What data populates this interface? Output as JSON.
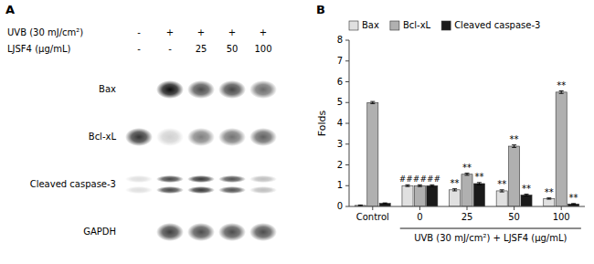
{
  "chart_data": [
    {
      "type": "blot",
      "title": "A",
      "header_rows": [
        {
          "label": "UVB (30 mJ/cm²)",
          "values": [
            "-",
            "+",
            "+",
            "+",
            "+"
          ]
        },
        {
          "label": "LJSF4 (μg/mL)",
          "values": [
            "-",
            "-",
            "25",
            "50",
            "100"
          ]
        }
      ],
      "series": [
        {
          "name": "Bax",
          "values": [
            0.0,
            0.95,
            0.7,
            0.72,
            0.58
          ]
        },
        {
          "name": "Bcl-xL",
          "values": [
            0.8,
            0.18,
            0.5,
            0.55,
            0.62
          ]
        },
        {
          "name": "Cleaved caspase-3",
          "values": [
            0.12,
            0.72,
            0.78,
            0.68,
            0.25
          ],
          "marker": "double"
        },
        {
          "name": "GAPDH",
          "values": [
            0.0,
            0.75,
            0.7,
            0.7,
            0.7
          ]
        }
      ]
    },
    {
      "type": "bar",
      "title": "B",
      "ylabel": "Folds",
      "categories": [
        "Control",
        "0",
        "25",
        "50",
        "100"
      ],
      "series": [
        {
          "name": "Bax",
          "color": "#e0e0e0",
          "values": [
            0.05,
            1.0,
            0.8,
            0.75,
            0.38
          ],
          "errors": [
            0.02,
            0.04,
            0.05,
            0.05,
            0.03
          ]
        },
        {
          "name": "Bcl-xL",
          "color": "#b0b0b0",
          "values": [
            5.0,
            1.0,
            1.55,
            2.9,
            5.5
          ],
          "errors": [
            0.05,
            0.04,
            0.05,
            0.06,
            0.06
          ]
        },
        {
          "name": "Cleaved caspase-3",
          "color": "#1a1a1a",
          "values": [
            0.15,
            1.0,
            1.1,
            0.55,
            0.12
          ],
          "errors": [
            0.02,
            0.04,
            0.05,
            0.04,
            0.02
          ]
        }
      ],
      "ylim": [
        0,
        8
      ],
      "yticks": [
        0,
        1,
        2,
        3,
        4,
        5,
        6,
        7,
        8
      ],
      "legend": "upper left",
      "grid": false,
      "annotations": [
        {
          "text": "UVB (30 mJ/cm²) + LJSF4 (μg/mL)",
          "span": [
            "0",
            "100"
          ]
        },
        {
          "text": "######",
          "category": "0"
        },
        {
          "text": "**",
          "category": "25",
          "series": "Bax"
        },
        {
          "text": "**",
          "category": "25",
          "series": "Bcl-xL"
        },
        {
          "text": "**",
          "category": "25",
          "series": "Cleaved caspase-3"
        },
        {
          "text": "**",
          "category": "50",
          "series": "Bax"
        },
        {
          "text": "**",
          "category": "50",
          "series": "Bcl-xL"
        },
        {
          "text": "**",
          "category": "50",
          "series": "Cleaved caspase-3"
        },
        {
          "text": "**",
          "category": "100",
          "series": "Bax"
        },
        {
          "text": "**",
          "category": "100",
          "series": "Bcl-xL"
        },
        {
          "text": "**",
          "category": "100",
          "series": "Cleaved caspase-3"
        }
      ]
    }
  ]
}
